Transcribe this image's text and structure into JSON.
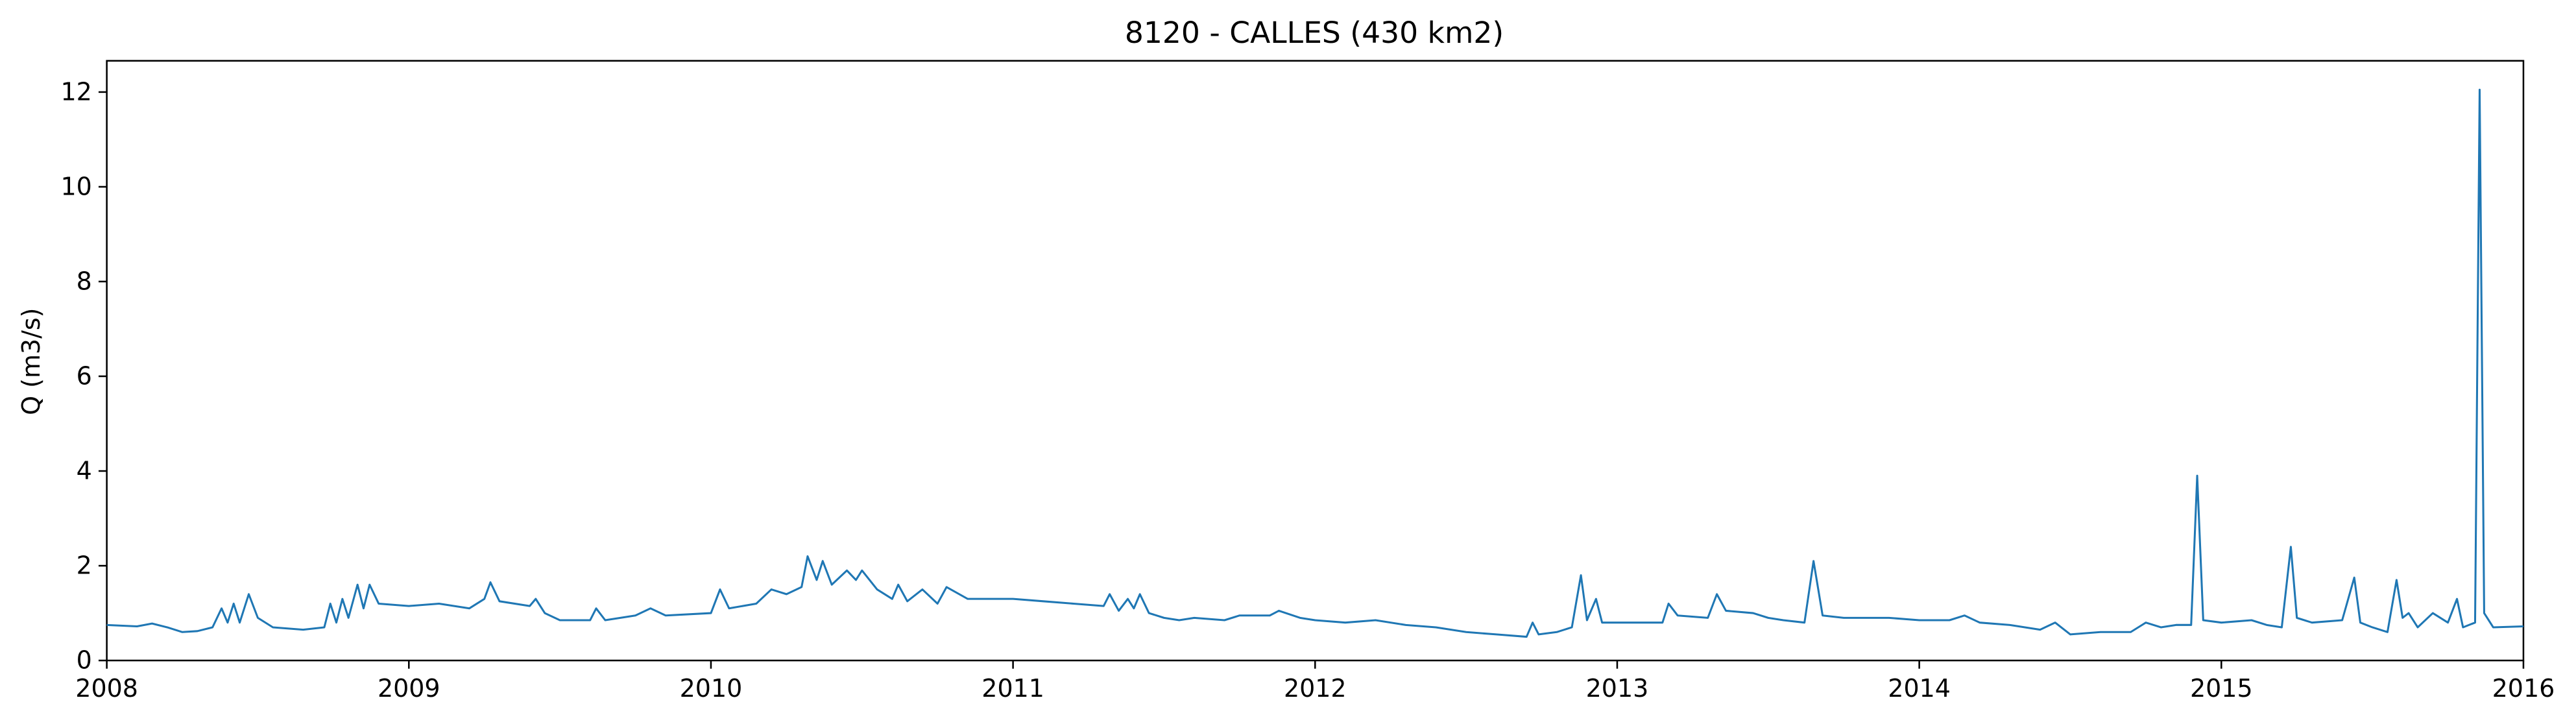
{
  "chart_data": {
    "type": "line",
    "title": "8120 - CALLES (430 km2)",
    "ylabel": "Q (m3/s)",
    "color": "#1f77b4",
    "x": [
      2008.0,
      2008.1,
      2008.15,
      2008.2,
      2008.25,
      2008.3,
      2008.35,
      2008.38,
      2008.4,
      2008.42,
      2008.44,
      2008.47,
      2008.5,
      2008.55,
      2008.65,
      2008.72,
      2008.74,
      2008.76,
      2008.78,
      2008.8,
      2008.83,
      2008.85,
      2008.87,
      2008.9,
      2009.0,
      2009.1,
      2009.2,
      2009.25,
      2009.27,
      2009.3,
      2009.4,
      2009.42,
      2009.45,
      2009.5,
      2009.6,
      2009.62,
      2009.65,
      2009.75,
      2009.8,
      2009.85,
      2010.0,
      2010.03,
      2010.06,
      2010.15,
      2010.2,
      2010.25,
      2010.3,
      2010.32,
      2010.35,
      2010.37,
      2010.4,
      2010.45,
      2010.48,
      2010.5,
      2010.55,
      2010.6,
      2010.62,
      2010.65,
      2010.7,
      2010.75,
      2010.78,
      2010.85,
      2011.0,
      2011.1,
      2011.2,
      2011.3,
      2011.32,
      2011.35,
      2011.38,
      2011.4,
      2011.42,
      2011.45,
      2011.5,
      2011.55,
      2011.6,
      2011.7,
      2011.75,
      2011.85,
      2011.88,
      2011.95,
      2012.0,
      2012.1,
      2012.2,
      2012.3,
      2012.4,
      2012.5,
      2012.6,
      2012.7,
      2012.72,
      2012.74,
      2012.8,
      2012.85,
      2012.88,
      2012.9,
      2012.93,
      2012.95,
      2013.0,
      2013.1,
      2013.15,
      2013.17,
      2013.2,
      2013.3,
      2013.33,
      2013.36,
      2013.45,
      2013.5,
      2013.55,
      2013.62,
      2013.65,
      2013.68,
      2013.75,
      2013.9,
      2014.0,
      2014.1,
      2014.15,
      2014.2,
      2014.3,
      2014.4,
      2014.45,
      2014.5,
      2014.6,
      2014.7,
      2014.75,
      2014.8,
      2014.85,
      2014.9,
      2014.92,
      2014.94,
      2015.0,
      2015.1,
      2015.15,
      2015.2,
      2015.23,
      2015.25,
      2015.3,
      2015.4,
      2015.44,
      2015.46,
      2015.5,
      2015.55,
      2015.58,
      2015.6,
      2015.62,
      2015.65,
      2015.7,
      2015.75,
      2015.78,
      2015.8,
      2015.84,
      2015.855,
      2015.87,
      2015.9,
      2016.0
    ],
    "values": [
      0.75,
      0.72,
      0.78,
      0.7,
      0.6,
      0.62,
      0.7,
      1.1,
      0.8,
      1.2,
      0.8,
      1.4,
      0.9,
      0.7,
      0.65,
      0.7,
      1.2,
      0.8,
      1.3,
      0.9,
      1.6,
      1.1,
      1.6,
      1.2,
      1.15,
      1.2,
      1.1,
      1.3,
      1.65,
      1.25,
      1.15,
      1.3,
      1.0,
      0.85,
      0.85,
      1.1,
      0.85,
      0.95,
      1.1,
      0.95,
      1.0,
      1.5,
      1.1,
      1.2,
      1.5,
      1.4,
      1.55,
      2.2,
      1.7,
      2.1,
      1.6,
      1.9,
      1.7,
      1.9,
      1.5,
      1.3,
      1.6,
      1.25,
      1.5,
      1.2,
      1.55,
      1.3,
      1.3,
      1.25,
      1.2,
      1.15,
      1.4,
      1.05,
      1.3,
      1.1,
      1.4,
      1.0,
      0.9,
      0.85,
      0.9,
      0.85,
      0.95,
      0.95,
      1.05,
      0.9,
      0.85,
      0.8,
      0.85,
      0.75,
      0.7,
      0.6,
      0.55,
      0.5,
      0.8,
      0.55,
      0.6,
      0.7,
      1.8,
      0.85,
      1.3,
      0.8,
      0.8,
      0.8,
      0.8,
      1.2,
      0.95,
      0.9,
      1.4,
      1.05,
      1.0,
      0.9,
      0.85,
      0.8,
      2.1,
      0.95,
      0.9,
      0.9,
      0.85,
      0.85,
      0.95,
      0.8,
      0.75,
      0.65,
      0.8,
      0.55,
      0.6,
      0.6,
      0.8,
      0.7,
      0.75,
      0.75,
      3.9,
      0.85,
      0.8,
      0.85,
      0.75,
      0.7,
      2.4,
      0.9,
      0.8,
      0.85,
      1.75,
      0.8,
      0.7,
      0.6,
      1.7,
      0.9,
      1.0,
      0.7,
      1.0,
      0.8,
      1.3,
      0.7,
      0.8,
      12.05,
      1.0,
      0.7,
      0.72
    ],
    "xlim": [
      2008,
      2016
    ],
    "xticks": [
      2008,
      2009,
      2010,
      2011,
      2012,
      2013,
      2014,
      2015,
      2016
    ],
    "ylim": [
      0,
      12.66
    ],
    "yticks": [
      0,
      2,
      4,
      6,
      8,
      10,
      12
    ]
  }
}
